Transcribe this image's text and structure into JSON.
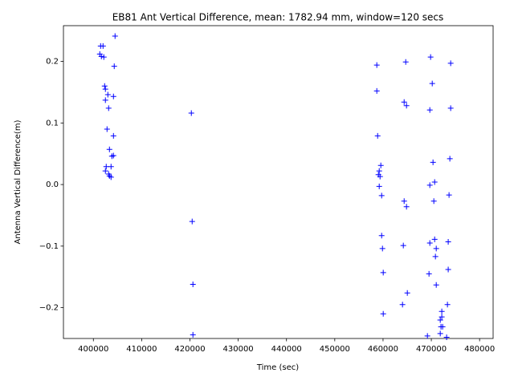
{
  "chart_data": {
    "type": "scatter",
    "title": "EB81 Ant Vertical Difference, mean: 1782.94 mm, window=120 secs",
    "x_label": "Time (sec)",
    "y_label": "Antenna Vertical Difference(m)",
    "marker": "+",
    "color": "#0000ff",
    "xlim": [
      393800,
      482800
    ],
    "ylim": [
      -0.25,
      0.258
    ],
    "xticks": [
      400000,
      410000,
      420000,
      430000,
      440000,
      450000,
      460000,
      470000,
      480000
    ],
    "yticks": [
      {
        "value": -0.2,
        "label": "−0.2"
      },
      {
        "value": -0.1,
        "label": "−0.1"
      },
      {
        "value": 0,
        "label": "0.0"
      },
      0.1,
      0.2
    ],
    "x": [
      404490,
      401500,
      402000,
      401330,
      401660,
      402160,
      404320,
      402330,
      402490,
      403000,
      404160,
      402490,
      403160,
      420290,
      402830,
      404160,
      403330,
      403830,
      404160,
      402660,
      403660,
      402490,
      403160,
      403660,
      403330,
      420460,
      420620,
      420620,
      458710,
      464700,
      458710,
      464370,
      464860,
      458880,
      459540,
      459210,
      459040,
      459380,
      459210,
      459710,
      464370,
      464860,
      459710,
      464200,
      459880,
      460040,
      465030,
      464030,
      460040,
      469850,
      474010,
      470190,
      474010,
      469690,
      473840,
      470350,
      470690,
      469690,
      473670,
      470520,
      470690,
      473500,
      469690,
      471020,
      470850,
      473500,
      469520,
      471020,
      473340,
      472170,
      472170,
      471850,
      472000,
      472340,
      471850,
      469190,
      473170
    ],
    "y": [
      0.241,
      0.225,
      0.225,
      0.212,
      0.208,
      0.207,
      0.192,
      0.16,
      0.155,
      0.146,
      0.143,
      0.137,
      0.124,
      0.116,
      0.09,
      0.079,
      0.057,
      0.046,
      0.047,
      0.029,
      0.029,
      0.022,
      0.017,
      0.012,
      0.014,
      -0.06,
      -0.162,
      -0.244,
      0.194,
      0.199,
      0.152,
      0.134,
      0.128,
      0.079,
      0.031,
      0.022,
      0.016,
      0.013,
      -0.003,
      -0.018,
      -0.027,
      -0.036,
      -0.083,
      -0.099,
      -0.104,
      -0.143,
      -0.176,
      -0.195,
      -0.21,
      0.207,
      0.197,
      0.164,
      0.124,
      0.121,
      0.042,
      0.036,
      0.004,
      -0.001,
      -0.017,
      -0.027,
      -0.089,
      -0.093,
      -0.095,
      -0.104,
      -0.117,
      -0.138,
      -0.145,
      -0.163,
      -0.195,
      -0.206,
      -0.215,
      -0.22,
      -0.231,
      -0.231,
      -0.242,
      -0.246,
      -0.248
    ]
  }
}
